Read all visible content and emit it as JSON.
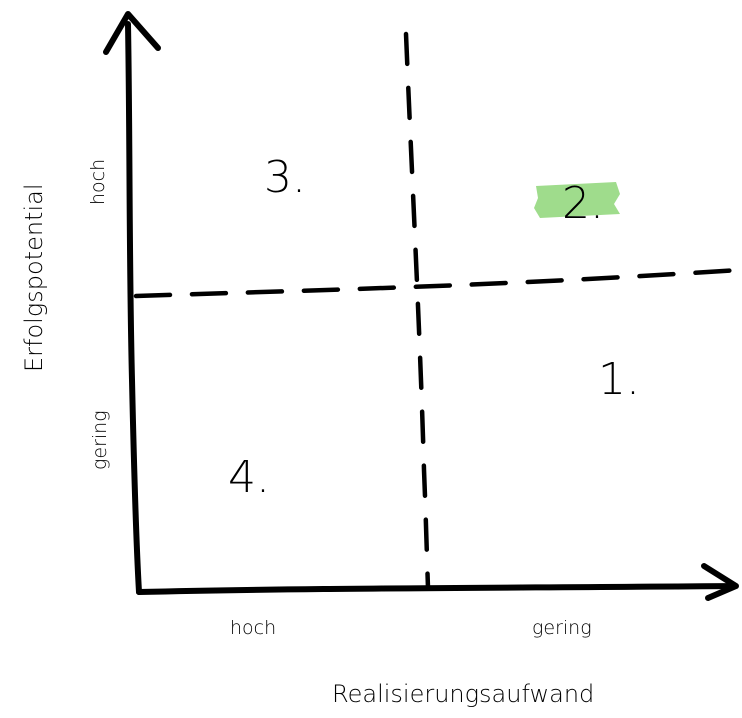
{
  "diagram": {
    "x_axis": {
      "label": "Realisierungsaufwand",
      "low_end_label": "hoch",
      "high_end_label": "gering"
    },
    "y_axis": {
      "label": "Erfolgspotential",
      "top_label": "hoch",
      "bottom_label": "gering"
    },
    "quadrants": [
      {
        "id": "q1",
        "label": "1.",
        "highlighted": false
      },
      {
        "id": "q2",
        "label": "2.",
        "highlighted": true
      },
      {
        "id": "q3",
        "label": "3.",
        "highlighted": false
      },
      {
        "id": "q4",
        "label": "4.",
        "highlighted": false
      }
    ],
    "highlight_color": "#9fdc8c",
    "line_color": "#000000"
  }
}
